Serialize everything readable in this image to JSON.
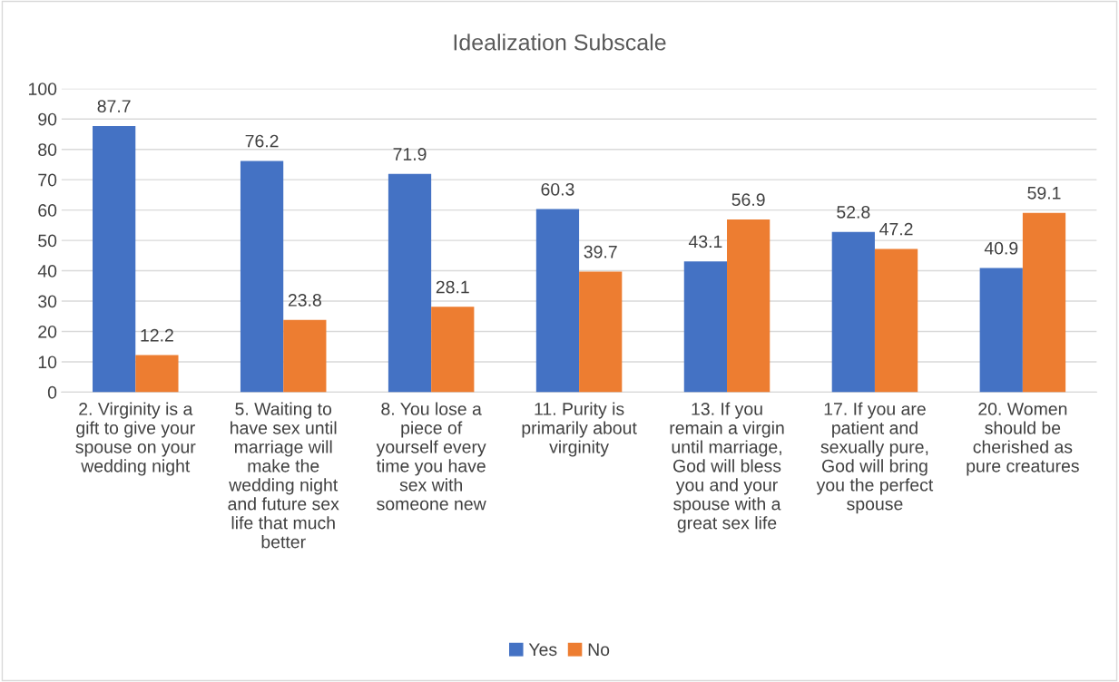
{
  "chart_data": {
    "type": "bar",
    "title": "Idealization Subscale",
    "categories": [
      "2. Virginity is a\ngift to give your\nspouse on your\nwedding night",
      "5. Waiting to\nhave sex until\nmarriage will\nmake the\nwedding night\nand future sex\nlife that much\nbetter",
      "8. You lose a\npiece of\nyourself every\ntime you have\nsex with\nsomeone new",
      "11. Purity is\nprimarily about\nvirginity",
      "13. If you\nremain a virgin\nuntil marriage,\nGod will bless\nyou and your\nspouse with a\ngreat sex life",
      "17. If you are\npatient and\nsexually pure,\nGod will bring\nyou the perfect\nspouse",
      "20. Women\nshould be\ncherished as\npure creatures"
    ],
    "series": [
      {
        "name": "Yes",
        "color": "#4472c4",
        "values": [
          87.7,
          76.2,
          71.9,
          60.3,
          43.1,
          52.8,
          40.9
        ]
      },
      {
        "name": "No",
        "color": "#ed7d31",
        "values": [
          12.2,
          23.8,
          28.1,
          39.7,
          56.9,
          47.2,
          59.1
        ]
      }
    ],
    "ylim": [
      0,
      100
    ],
    "yticks": [
      0,
      10,
      20,
      30,
      40,
      50,
      60,
      70,
      80,
      90,
      100
    ],
    "grid": "y",
    "legend": "bottom",
    "data_labels": true
  }
}
